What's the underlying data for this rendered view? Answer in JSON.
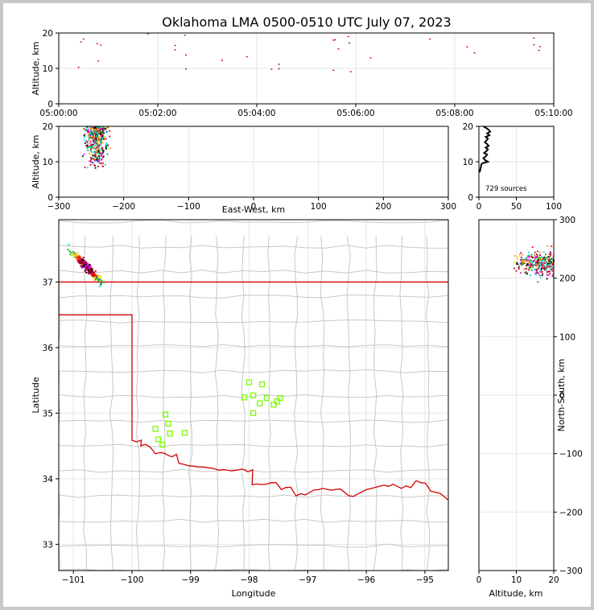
{
  "title": "Oklahoma LMA 0500-0510 UTC July 07, 2023",
  "colors": {
    "state_border": "#d00000",
    "county_lines": "#c8c8c8",
    "station_marker": "#7cfc00",
    "grid": "#e6e6e6"
  },
  "chart_data": [
    {
      "panel": "time-height",
      "type": "scatter",
      "ylabel": "Altitude, km",
      "ylim": [
        0,
        20
      ],
      "yticks": [
        "0",
        "10",
        "20"
      ],
      "xlim": [
        "05:00:00",
        "05:10:00"
      ],
      "xticks": [
        "05:00:00",
        "05:02:00",
        "05:04:00",
        "05:06:00",
        "05:08:00",
        "05:10:00"
      ],
      "points_t_min_alt_km": [
        [
          0.4,
          10.3
        ],
        [
          0.45,
          17.5
        ],
        [
          0.5,
          18.3
        ],
        [
          0.78,
          17.0
        ],
        [
          0.8,
          12.1
        ],
        [
          0.85,
          16.6
        ],
        [
          1.8,
          19.8
        ],
        [
          2.35,
          16.5
        ],
        [
          2.35,
          15.3
        ],
        [
          2.55,
          19.4
        ],
        [
          2.57,
          13.8
        ],
        [
          2.57,
          9.9
        ],
        [
          3.3,
          12.3
        ],
        [
          3.8,
          13.3
        ],
        [
          4.3,
          9.8
        ],
        [
          4.45,
          11.2
        ],
        [
          4.45,
          9.9
        ],
        [
          5.55,
          9.5
        ],
        [
          5.55,
          18.0
        ],
        [
          5.58,
          18.1
        ],
        [
          5.65,
          15.5
        ],
        [
          5.85,
          19.0
        ],
        [
          5.87,
          17.2
        ],
        [
          5.9,
          9.1
        ],
        [
          6.3,
          13.0
        ],
        [
          7.5,
          18.3
        ],
        [
          8.25,
          16.1
        ],
        [
          8.4,
          14.4
        ],
        [
          9.6,
          18.6
        ],
        [
          9.6,
          16.7
        ],
        [
          9.7,
          15.1
        ],
        [
          9.72,
          16.2
        ]
      ]
    },
    {
      "panel": "east-west-height",
      "type": "scatter",
      "xlabel": "East-West, km",
      "ylabel": "Altitude, km",
      "xlim": [
        -300,
        300
      ],
      "xticks": [
        "−300",
        "−200",
        "−100",
        "0",
        "100",
        "200",
        "300"
      ],
      "ylim": [
        0,
        20
      ],
      "yticks": [
        "0",
        "10",
        "20"
      ],
      "cluster": {
        "x_center_km": -242,
        "x_spread_km": 14,
        "alt_min_km": 8,
        "alt_max_km": 20,
        "count": 420
      }
    },
    {
      "panel": "altitude-histogram",
      "type": "line",
      "xlim": [
        0,
        100
      ],
      "xticks": [
        "0",
        "50",
        "100"
      ],
      "ylim": [
        0,
        20
      ],
      "yticks": [
        "0",
        "10",
        "20"
      ],
      "annotation": "729 sources",
      "profile_alt_km_count": [
        [
          7,
          1
        ],
        [
          8,
          2
        ],
        [
          9,
          3
        ],
        [
          9.5,
          4
        ],
        [
          10,
          12
        ],
        [
          10.5,
          8
        ],
        [
          11,
          6
        ],
        [
          11.5,
          9
        ],
        [
          12,
          11
        ],
        [
          12.5,
          7
        ],
        [
          13,
          10
        ],
        [
          13.5,
          12
        ],
        [
          14,
          9
        ],
        [
          14.5,
          13
        ],
        [
          15,
          11
        ],
        [
          15.5,
          8
        ],
        [
          16,
          10
        ],
        [
          16.5,
          12
        ],
        [
          17,
          9
        ],
        [
          17.5,
          14
        ],
        [
          18,
          11
        ],
        [
          18.5,
          15
        ],
        [
          19,
          13
        ],
        [
          19.5,
          10
        ],
        [
          20,
          6
        ]
      ]
    },
    {
      "panel": "plan-view",
      "type": "scatter",
      "xlabel": "Longitude",
      "ylabel": "Latitude",
      "xlim": [
        -101.25,
        -94.6
      ],
      "ylim": [
        32.6,
        37.95
      ],
      "xticks": [
        "−101",
        "−100",
        "−99",
        "−98",
        "−97",
        "−96",
        "−95"
      ],
      "yticks": [
        "33",
        "34",
        "35",
        "36",
        "37"
      ],
      "cluster": {
        "lon_center": -100.78,
        "lat_center": 37.24,
        "count": 300
      },
      "stations_lon_lat": [
        [
          -98.0,
          35.47
        ],
        [
          -97.78,
          35.44
        ],
        [
          -98.08,
          35.24
        ],
        [
          -97.93,
          35.27
        ],
        [
          -97.7,
          35.23
        ],
        [
          -97.82,
          35.15
        ],
        [
          -97.52,
          35.18
        ],
        [
          -97.47,
          35.23
        ],
        [
          -97.58,
          35.13
        ],
        [
          -97.93,
          35.0
        ],
        [
          -99.43,
          34.98
        ],
        [
          -99.38,
          34.84
        ],
        [
          -99.6,
          34.76
        ],
        [
          -99.35,
          34.69
        ],
        [
          -99.1,
          34.7
        ],
        [
          -99.55,
          34.6
        ],
        [
          -99.48,
          34.52
        ]
      ]
    },
    {
      "panel": "north-south-height",
      "type": "scatter",
      "xlabel": "Altitude, km",
      "ylabel": "North-South, km",
      "xlim": [
        0,
        20
      ],
      "xticks": [
        "0",
        "10",
        "20"
      ],
      "ylim": [
        -300,
        300
      ],
      "yticks": [
        "−300",
        "−200",
        "−100",
        "0",
        "100",
        "200",
        "300"
      ],
      "cluster": {
        "ns_center_km": 225,
        "ns_spread_km": 18,
        "alt_min_km": 9,
        "alt_max_km": 20,
        "count": 320
      }
    }
  ]
}
